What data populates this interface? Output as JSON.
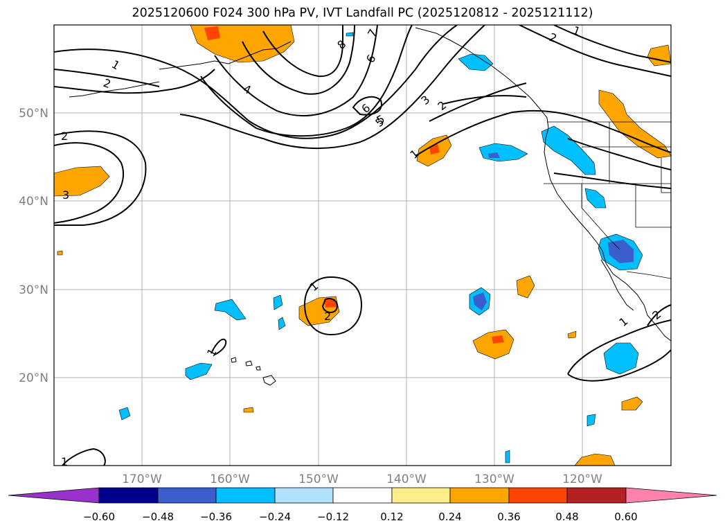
{
  "title": "2025120600 F024 300 hPa PV, IVT Landfall PC (2025120812 - 2025121112)",
  "map": {
    "lon_range": [
      -180,
      -110
    ],
    "lat_range": [
      10,
      60
    ],
    "lon_ticks": [
      {
        "value": -170,
        "label": "170°W"
      },
      {
        "value": -160,
        "label": "160°W"
      },
      {
        "value": -150,
        "label": "150°W"
      },
      {
        "value": -140,
        "label": "140°W"
      },
      {
        "value": -130,
        "label": "130°W"
      },
      {
        "value": -120,
        "label": "120°W"
      }
    ],
    "lat_ticks": [
      {
        "value": 20,
        "label": "20°N"
      },
      {
        "value": 30,
        "label": "30°N"
      },
      {
        "value": 40,
        "label": "40°N"
      },
      {
        "value": 50,
        "label": "50°N"
      }
    ],
    "contour_labels": [
      "1",
      "2",
      "3",
      "4",
      "5",
      "6",
      "7",
      "8",
      "1",
      "2",
      "1",
      "2",
      "3",
      "1",
      "2",
      "2",
      "1",
      "1",
      "2",
      "5",
      "6",
      "1"
    ]
  },
  "colorbar": {
    "colors": [
      "#9932cc",
      "#00008b",
      "#3a5fcd",
      "#00bfff",
      "#b0e2ff",
      "#ffffff",
      "#ffec8b",
      "#ffa500",
      "#ff4500",
      "#b22222",
      "#ff82ab"
    ],
    "tick_labels": [
      "−0.60",
      "−0.48",
      "−0.36",
      "−0.24",
      "−0.12",
      "0.12",
      "0.24",
      "0.36",
      "0.48",
      "0.60"
    ]
  }
}
